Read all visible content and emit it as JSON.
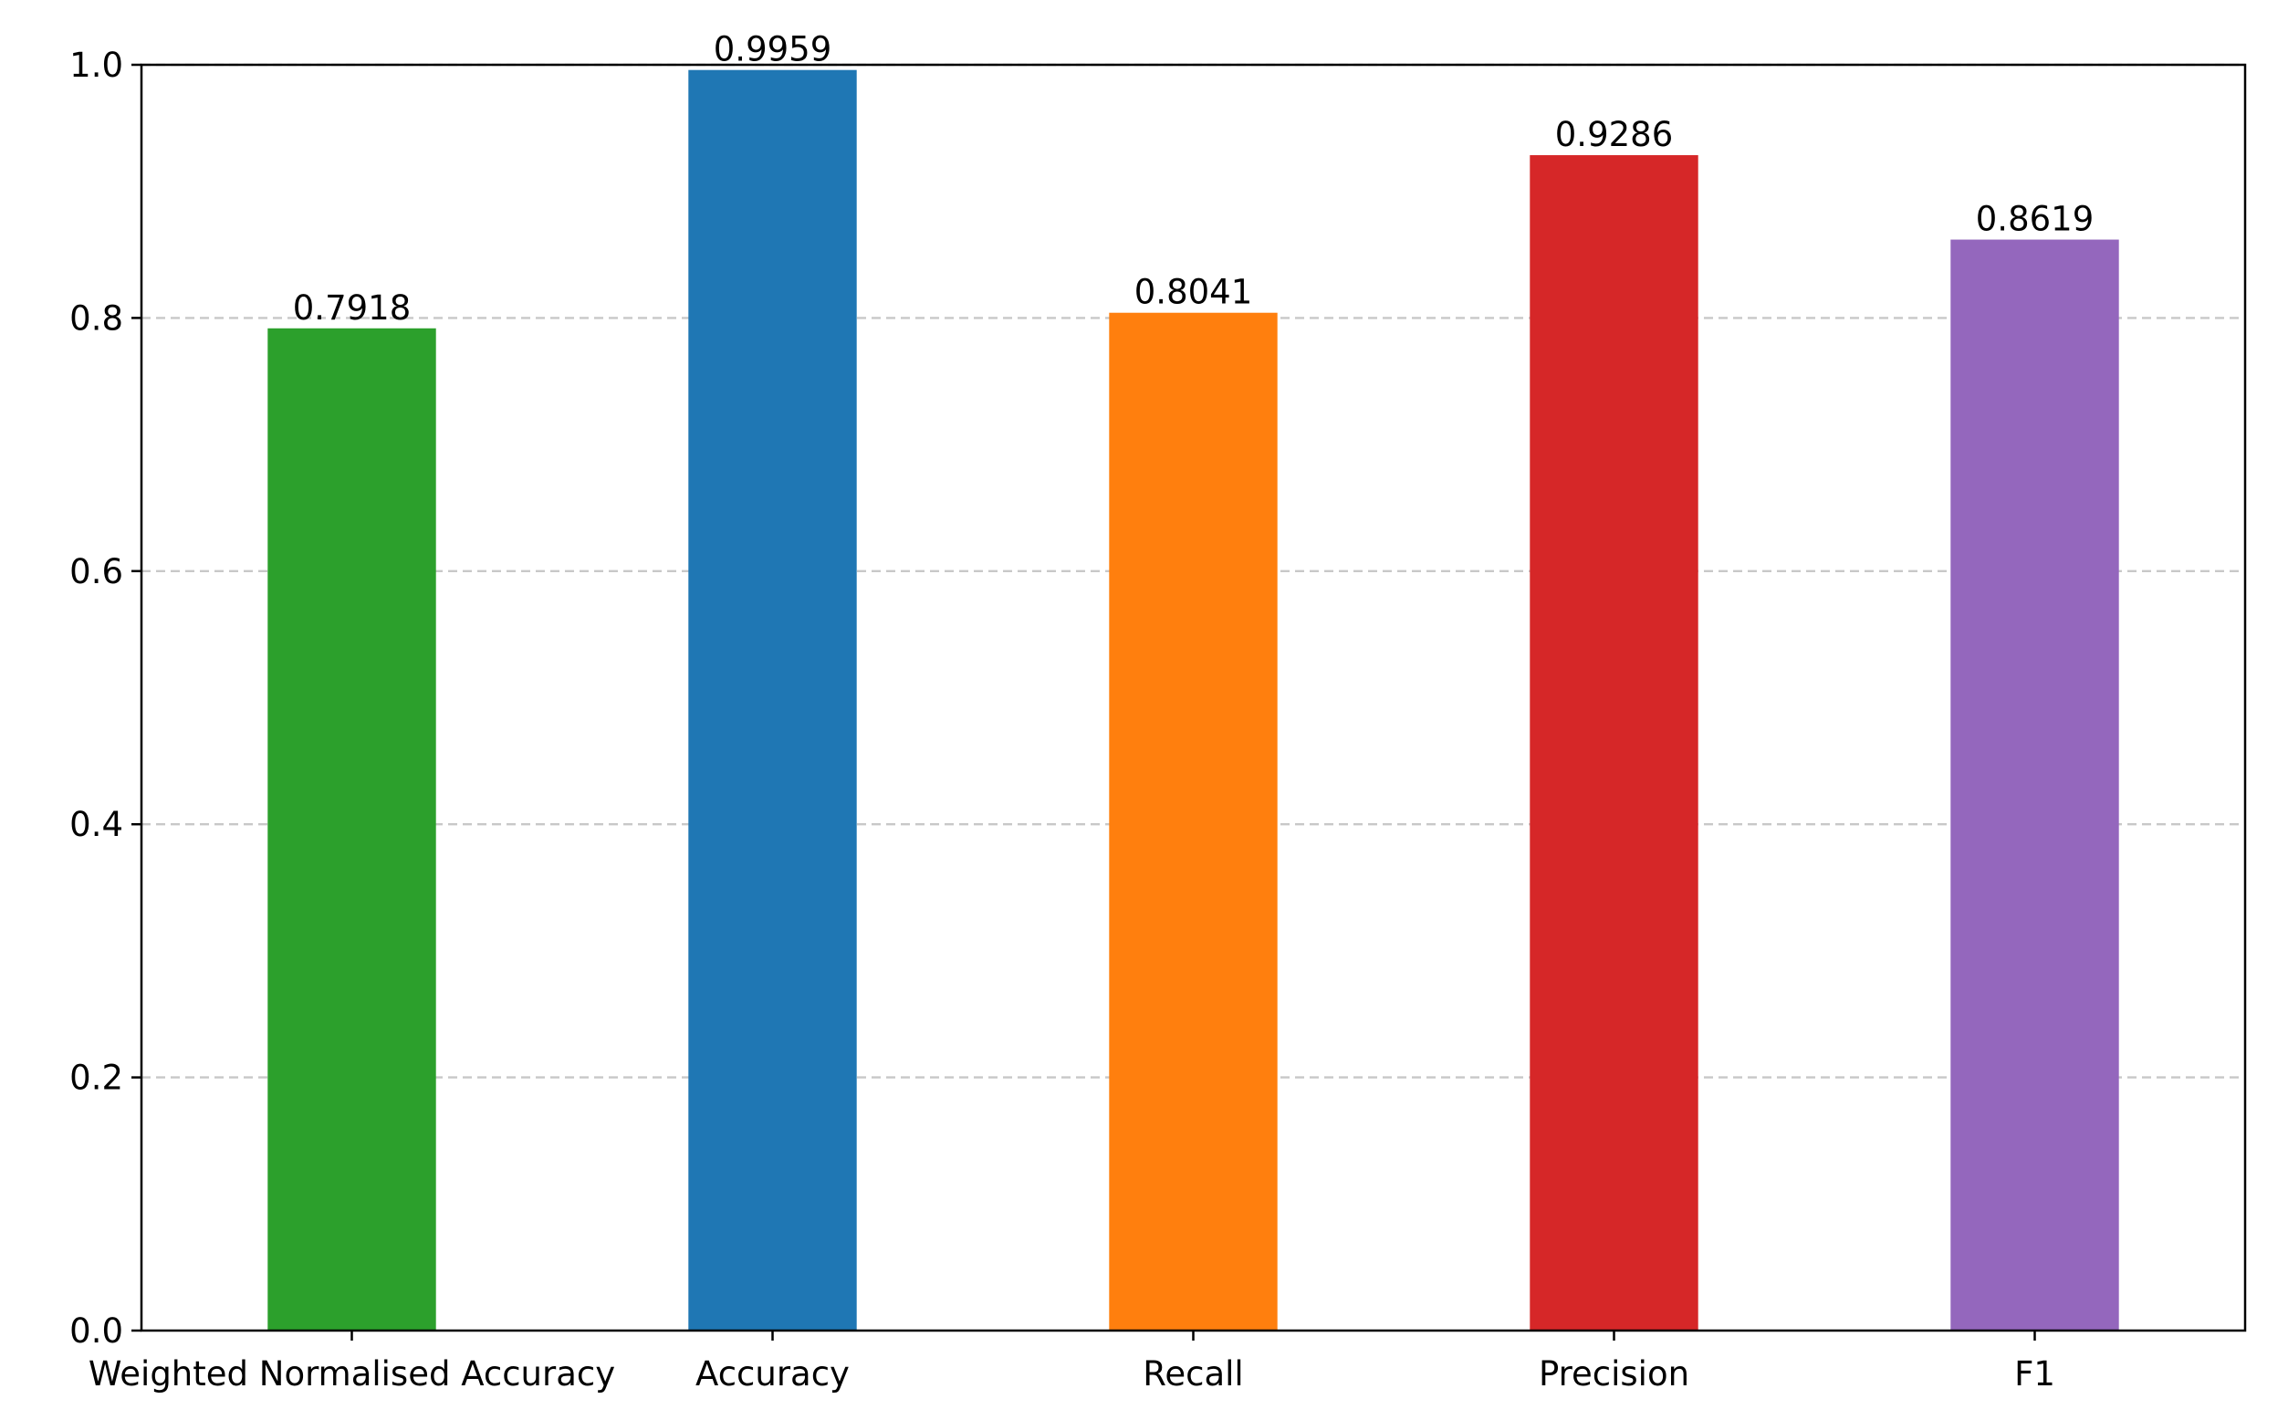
{
  "chart_data": {
    "type": "bar",
    "title": "",
    "xlabel": "",
    "ylabel": "",
    "categories": [
      "Weighted Normalised Accuracy",
      "Accuracy",
      "Recall",
      "Precision",
      "F1"
    ],
    "values": [
      0.7918,
      0.9959,
      0.8041,
      0.9286,
      0.8619
    ],
    "data_labels": [
      "0.7918",
      "0.9959",
      "0.8041",
      "0.9286",
      "0.8619"
    ],
    "colors": [
      "#2ca02c",
      "#1f77b4",
      "#ff7f0e",
      "#d62728",
      "#9467bd"
    ],
    "ylim": [
      0,
      1.0
    ],
    "yticks": [
      0.0,
      0.2,
      0.4,
      0.6,
      0.8,
      1.0
    ],
    "ytick_labels": [
      "0.0",
      "0.2",
      "0.4",
      "0.6",
      "0.8",
      "1.0"
    ],
    "grid": "y-dashed",
    "legend": "none"
  }
}
